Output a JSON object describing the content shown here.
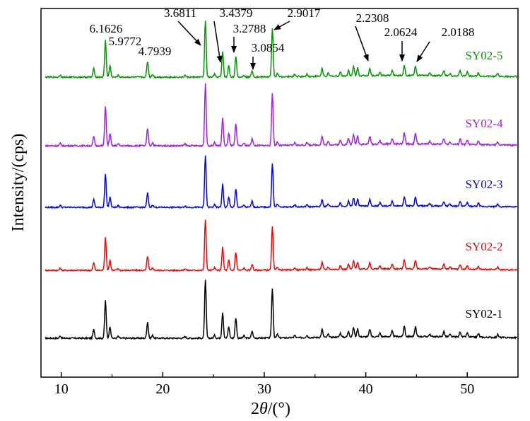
{
  "chart_data": {
    "type": "line",
    "title": "",
    "xlabel_prefix": "2",
    "xlabel_theta": "θ",
    "xlabel_suffix": "/(°)",
    "ylabel": "Intensity/(cps)",
    "xlim": [
      8,
      55
    ],
    "xticks": [
      "10",
      "20",
      "30",
      "40",
      "50"
    ],
    "xtick_values": [
      10,
      20,
      30,
      40,
      50
    ],
    "yticks_shown": false,
    "grid": false,
    "legend_position": "inline-right",
    "peaks": [
      {
        "x": 9.9,
        "h": 0.04
      },
      {
        "x": 13.2,
        "h": 0.15
      },
      {
        "x": 14.35,
        "h": 0.65
      },
      {
        "x": 14.8,
        "h": 0.2
      },
      {
        "x": 15.6,
        "h": 0.03
      },
      {
        "x": 18.5,
        "h": 0.28
      },
      {
        "x": 19.0,
        "h": 0.05
      },
      {
        "x": 22.2,
        "h": 0.03
      },
      {
        "x": 24.2,
        "h": 1.0
      },
      {
        "x": 25.1,
        "h": 0.05
      },
      {
        "x": 25.9,
        "h": 0.45
      },
      {
        "x": 26.5,
        "h": 0.2
      },
      {
        "x": 27.2,
        "h": 0.35
      },
      {
        "x": 28.0,
        "h": 0.04
      },
      {
        "x": 28.8,
        "h": 0.12
      },
      {
        "x": 30.8,
        "h": 0.85
      },
      {
        "x": 31.3,
        "h": 0.06
      },
      {
        "x": 33.0,
        "h": 0.04
      },
      {
        "x": 34.2,
        "h": 0.04
      },
      {
        "x": 35.7,
        "h": 0.14
      },
      {
        "x": 36.3,
        "h": 0.05
      },
      {
        "x": 37.5,
        "h": 0.07
      },
      {
        "x": 38.3,
        "h": 0.1
      },
      {
        "x": 38.8,
        "h": 0.16
      },
      {
        "x": 39.2,
        "h": 0.14
      },
      {
        "x": 40.4,
        "h": 0.13
      },
      {
        "x": 41.4,
        "h": 0.06
      },
      {
        "x": 42.6,
        "h": 0.09
      },
      {
        "x": 43.8,
        "h": 0.18
      },
      {
        "x": 44.9,
        "h": 0.17
      },
      {
        "x": 46.3,
        "h": 0.04
      },
      {
        "x": 47.7,
        "h": 0.09
      },
      {
        "x": 48.3,
        "h": 0.04
      },
      {
        "x": 49.3,
        "h": 0.09
      },
      {
        "x": 50.0,
        "h": 0.07
      },
      {
        "x": 51.1,
        "h": 0.06
      },
      {
        "x": 53.0,
        "h": 0.05
      }
    ],
    "series": [
      {
        "name": "SY02-1",
        "color": "#000000"
      },
      {
        "name": "SY02-2",
        "color": "#ff0000"
      },
      {
        "name": "SY02-3",
        "color": "#0000ff"
      },
      {
        "name": "SY02-4",
        "color": "#a020f0"
      },
      {
        "name": "SY02-5",
        "color": "#009900"
      }
    ],
    "annotations": [
      {
        "text": "6.1626",
        "x": 14.35
      },
      {
        "text": "5.9772",
        "x": 14.8
      },
      {
        "text": "4.7939",
        "x": 18.5
      },
      {
        "text": "3.6811",
        "x": 24.2
      },
      {
        "text": "3.4379",
        "x": 25.9
      },
      {
        "text": "3.2788",
        "x": 27.2
      },
      {
        "text": "3.0854",
        "x": 28.8
      },
      {
        "text": "2.9017",
        "x": 30.8
      },
      {
        "text": "2.2308",
        "x": 40.4
      },
      {
        "text": "2.0624",
        "x": 43.8
      },
      {
        "text": "2.0188",
        "x": 44.9
      }
    ]
  }
}
